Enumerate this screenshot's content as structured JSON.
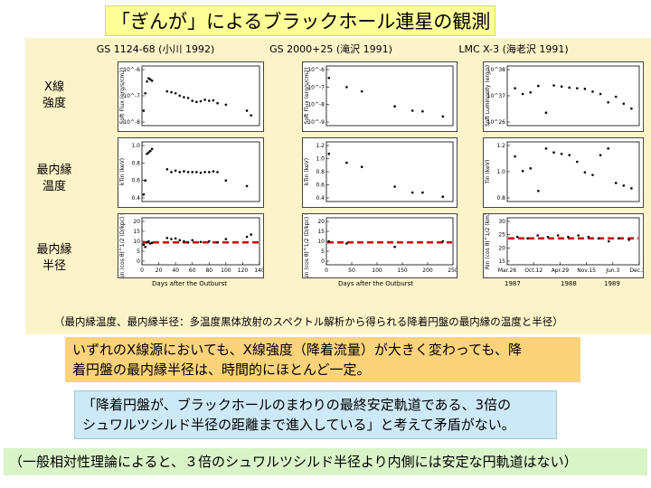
{
  "title": "「ぎんが」によるブラックホール連星の観測",
  "columns": [
    {
      "label": "GS 1124-68 (小川 1992)"
    },
    {
      "label": "GS 2000+25 (滝沢 1991)"
    },
    {
      "label": "LMC X-3 (海老沢 1991)"
    }
  ],
  "rows": [
    {
      "label_line1": "X線",
      "label_line2": "強度"
    },
    {
      "label_line1": "最内縁",
      "label_line2": "温度"
    },
    {
      "label_line1": "最内縁",
      "label_line2": "半径"
    }
  ],
  "caption": "（最内縁温度、最内縁半径：多温度黒体放射のスペクトル解析から得られる降着円盤の最内縁の温度と半径）",
  "box1_line1": "いずれのX線源においても、X線強度（降着流量）が大きく変わっても、降",
  "box1_line2": "着円盤の最内縁半径は、時間的にほとんど一定。",
  "box2_line1": "「降着円盤が、ブラックホールのまわりの最終安定軌道である、3倍の",
  "box2_line2": "シュワルツシルド半径の距離まで進入している」と考えて矛盾がない。",
  "box3": "（一般相対性理論によると、３倍のシュワルツシルド半径より内側には安定な円軌道はない）",
  "colors": {
    "accent_dashed": "#cc0000",
    "title_bg": "#ffff99",
    "box1_bg": "#fcd27a",
    "box2_bg": "#cde8f6",
    "box3_bg": "#d8f4c8"
  },
  "chart_data": [
    {
      "type": "scatter",
      "source": "GS 1124-68",
      "panels": [
        {
          "ylabel": "Soft Flux (erg/s/cm2)",
          "yscale": "log",
          "yticks": [
            "10^-6",
            "10^-7",
            "10^-8"
          ],
          "x": [
            2,
            4,
            6,
            8,
            10,
            12,
            30,
            35,
            40,
            45,
            50,
            55,
            60,
            65,
            70,
            75,
            80,
            85,
            90,
            100,
            125,
            130
          ],
          "y": [
            2e-08,
            1e-07,
            3e-07,
            4e-07,
            3.6e-07,
            3.2e-07,
            1.2e-07,
            1.1e-07,
            1e-07,
            8e-08,
            7e-08,
            6.5e-08,
            5e-08,
            4.5e-08,
            4.8e-08,
            5.5e-08,
            5e-08,
            5.2e-08,
            4e-08,
            3.5e-08,
            2e-08,
            1.3e-08
          ]
        },
        {
          "ylabel": "kTin (keV)",
          "yscale": "linear",
          "yticks": [
            "1.0",
            "0.8",
            "0.6",
            "0.4"
          ],
          "x": [
            2,
            4,
            6,
            8,
            10,
            12,
            30,
            35,
            40,
            45,
            50,
            55,
            60,
            65,
            70,
            75,
            80,
            85,
            90,
            100,
            125
          ],
          "y": [
            0.4,
            0.6,
            0.98,
            1.0,
            1.02,
            1.05,
            0.76,
            0.72,
            0.74,
            0.72,
            0.73,
            0.72,
            0.72,
            0.72,
            0.71,
            0.72,
            0.72,
            0.73,
            0.72,
            0.6,
            0.52
          ]
        },
        {
          "ylabel": "Rin (cos θ)^1/2 (D/kpc) (km)",
          "xlabel": "Days after the Outburst",
          "yscale": "linear",
          "yticks": [
            "20",
            "15",
            "10",
            "5",
            "0"
          ],
          "xticks": [
            "0",
            "20",
            "40",
            "60",
            "80",
            "100",
            "120",
            "140"
          ],
          "reference_line": 10,
          "x": [
            2,
            4,
            6,
            8,
            10,
            12,
            30,
            35,
            40,
            45,
            50,
            55,
            60,
            70,
            80,
            90,
            100,
            125,
            130
          ],
          "y": [
            9,
            8,
            10,
            10.5,
            9.5,
            9.8,
            12,
            11.5,
            11.8,
            11,
            10.5,
            10,
            11,
            10.2,
            10.5,
            10,
            11.5,
            12.5,
            13.5
          ]
        }
      ]
    },
    {
      "type": "scatter",
      "source": "GS 2000+25",
      "panels": [
        {
          "ylabel": "Soft Flux (erg/s/cm2)",
          "yscale": "log",
          "yticks": [
            "10^-6",
            "10^-7",
            "10^-8",
            "10^-9"
          ],
          "x": [
            5,
            40,
            70,
            135,
            170,
            190,
            230
          ],
          "y": [
            3e-07,
            1e-07,
            6e-08,
            1e-08,
            6e-09,
            5.5e-09,
            3e-09
          ]
        },
        {
          "ylabel": "kTin (keV)",
          "yscale": "linear",
          "yticks": [
            "1.2",
            "1.0",
            "0.8",
            "0.6",
            "0.4"
          ],
          "x": [
            5,
            40,
            70,
            135,
            170,
            190,
            230
          ],
          "y": [
            1.1,
            0.95,
            0.88,
            0.55,
            0.45,
            0.45,
            0.38
          ]
        },
        {
          "ylabel": "Rin (cos θ)^1/2 (D/kpc) (km)",
          "xlabel": "Days after the Outburst",
          "yscale": "linear",
          "yticks": [
            "20",
            "15",
            "10",
            "5",
            "0"
          ],
          "xticks": [
            "0",
            "50",
            "100",
            "150",
            "200",
            "250"
          ],
          "reference_line": 10,
          "x": [
            5,
            40,
            135,
            230
          ],
          "y": [
            10.5,
            9.5,
            8,
            10.5
          ]
        }
      ]
    },
    {
      "type": "scatter",
      "source": "LMC X-3",
      "panels": [
        {
          "ylabel": "Soft Luminosity (erg/s)",
          "yscale": "log",
          "yticks": [
            "10^38",
            "10^37",
            "10^26"
          ],
          "x": [
            1,
            2,
            3,
            4,
            5,
            6,
            7,
            8,
            9,
            10,
            11,
            12,
            13,
            14,
            15,
            16
          ],
          "y": [
            3e+37,
            2.2e+37,
            2.4e+37,
            3.4e+37,
            8e+36,
            3.5e+37,
            3.3e+37,
            3.1e+37,
            3e+37,
            2.9e+37,
            2.5e+37,
            2.2e+37,
            1.4e+37,
            1.9e+37,
            1.3e+37,
            1e+37
          ]
        },
        {
          "ylabel": "Tin (keV)",
          "yscale": "linear",
          "yticks": [
            "1.2",
            "1.0",
            "0.8"
          ],
          "x": [
            1,
            2,
            3,
            4,
            5,
            6,
            7,
            8,
            9,
            10,
            11,
            12,
            13,
            14,
            15,
            16
          ],
          "y": [
            1.19,
            1.08,
            1.1,
            0.93,
            1.25,
            1.22,
            1.21,
            1.2,
            1.15,
            1.07,
            1.05,
            1.2,
            1.25,
            0.99,
            0.97,
            0.95
          ]
        },
        {
          "ylabel": "Rin (cos θ)^1/2 (km)",
          "yscale": "linear",
          "yticks": [
            "30",
            "25",
            "20",
            "15"
          ],
          "xticks": [
            "Mar.26",
            "Oct.12",
            "Apr.29",
            "Nov.15",
            "Jun.3",
            "Dec.20"
          ],
          "xticks_years": [
            "1987",
            "1988",
            "1989"
          ],
          "reference_line": 23,
          "x": [
            1,
            2,
            3,
            4,
            5,
            6,
            7,
            8,
            9,
            10,
            11,
            12
          ],
          "y": [
            23.5,
            23,
            24,
            23.5,
            24,
            23.5,
            24,
            23.5,
            23,
            22,
            23,
            22.5
          ]
        }
      ]
    }
  ]
}
